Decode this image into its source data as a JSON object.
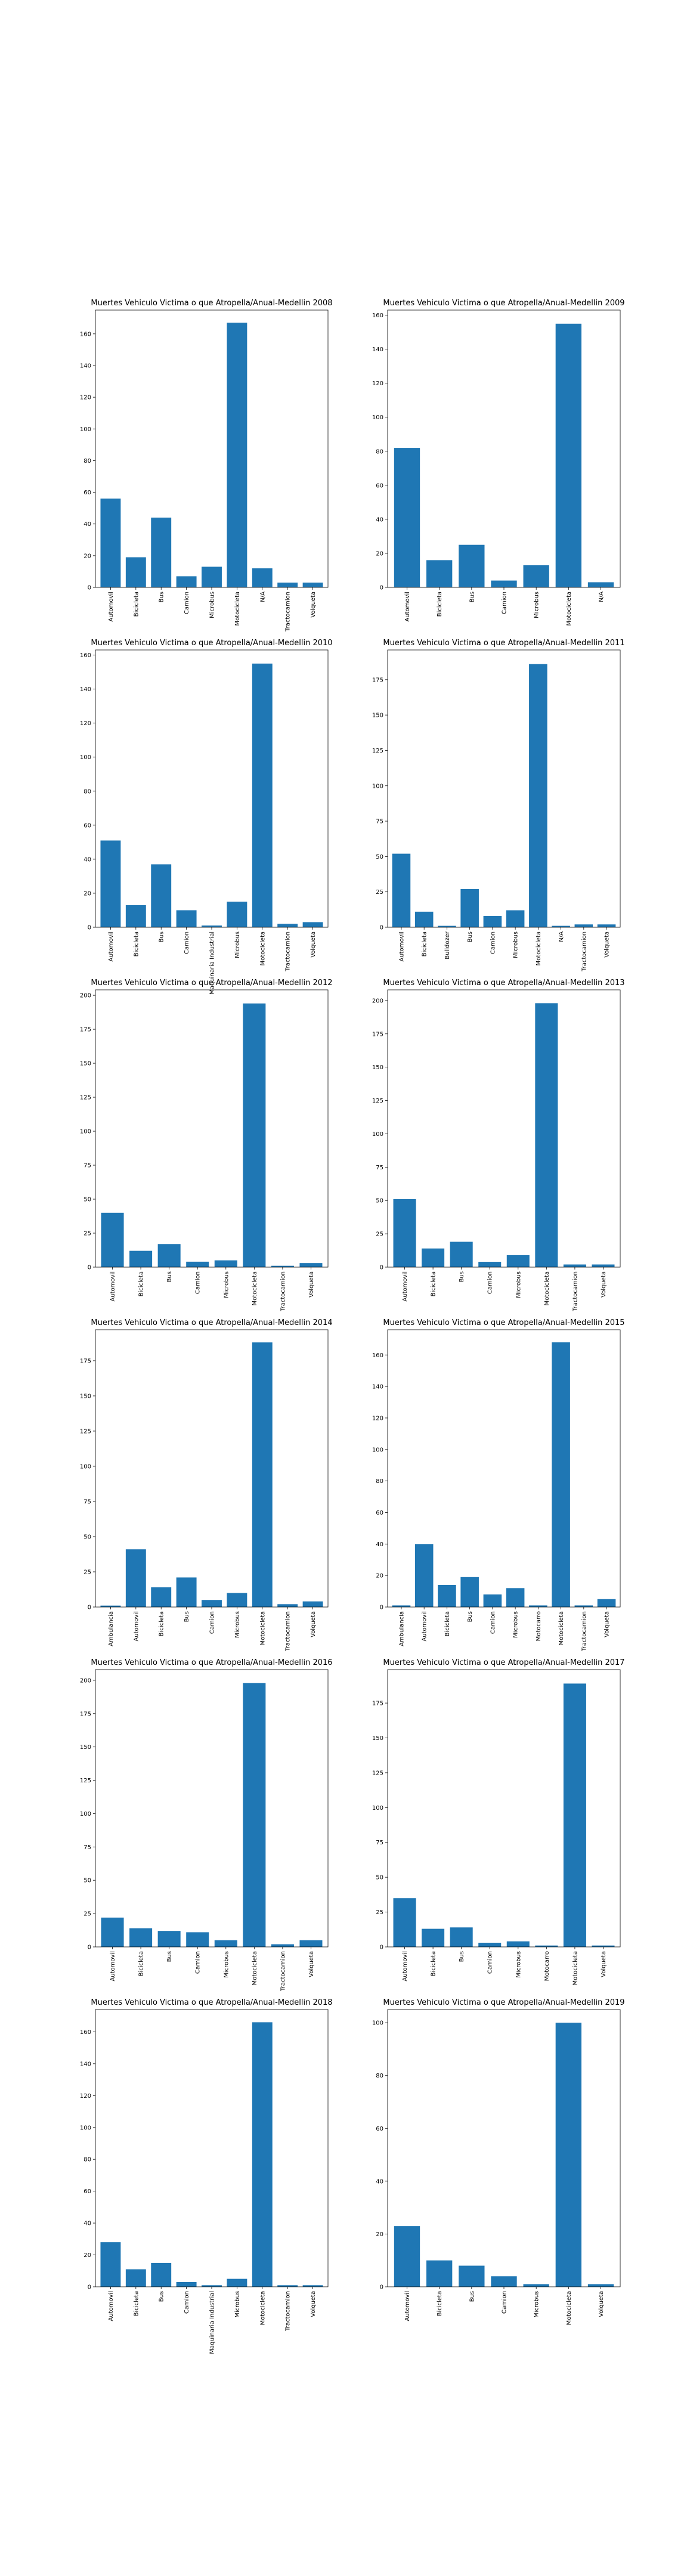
{
  "colors": {
    "bar": "#1f77b4",
    "axis": "#000000",
    "background": "#ffffff"
  },
  "chart_data": [
    {
      "type": "bar",
      "title": "Muertes Vehiculo Victima o que Atropella/Anual-Medellin 2008",
      "categories": [
        "Automovil",
        "Bicicleta",
        "Bus",
        "Camion",
        "Microbus",
        "Motocicleta",
        "N/A",
        "Tractocamion",
        "Volqueta"
      ],
      "values": [
        56,
        19,
        44,
        7,
        13,
        167,
        12,
        3,
        3
      ],
      "xlabel": "",
      "ylabel": "",
      "ylim": [
        0,
        175
      ],
      "yticks": [
        0,
        20,
        40,
        60,
        80,
        100,
        120,
        140,
        160
      ],
      "grid": false
    },
    {
      "type": "bar",
      "title": "Muertes Vehiculo Victima o que Atropella/Anual-Medellin 2009",
      "categories": [
        "Automovil",
        "Bicicleta",
        "Bus",
        "Camion",
        "Microbus",
        "Motocicleta",
        "N/A"
      ],
      "values": [
        82,
        16,
        25,
        4,
        13,
        155,
        3
      ],
      "xlabel": "",
      "ylabel": "",
      "ylim": [
        0,
        163
      ],
      "yticks": [
        0,
        20,
        40,
        60,
        80,
        100,
        120,
        140,
        160
      ],
      "grid": false
    },
    {
      "type": "bar",
      "title": "Muertes Vehiculo Victima o que Atropella/Anual-Medellin 2010",
      "categories": [
        "Automovil",
        "Bicicleta",
        "Bus",
        "Camion",
        "Maquinaria Industrial",
        "Microbus",
        "Motocicleta",
        "Tractocamion",
        "Volqueta"
      ],
      "values": [
        51,
        13,
        37,
        10,
        1,
        15,
        155,
        2,
        3
      ],
      "xlabel": "",
      "ylabel": "",
      "ylim": [
        0,
        163
      ],
      "yticks": [
        0,
        20,
        40,
        60,
        80,
        100,
        120,
        140,
        160
      ],
      "grid": false
    },
    {
      "type": "bar",
      "title": "Muertes Vehiculo Victima o que Atropella/Anual-Medellin 2011",
      "categories": [
        "Automovil",
        "Bicicleta",
        "Bulldozer",
        "Bus",
        "Camion",
        "Microbus",
        "Motocicleta",
        "N/A",
        "Tractocamion",
        "Volqueta"
      ],
      "values": [
        52,
        11,
        1,
        27,
        8,
        12,
        186,
        1,
        2,
        2
      ],
      "xlabel": "",
      "ylabel": "",
      "ylim": [
        0,
        196
      ],
      "yticks": [
        0,
        25,
        50,
        75,
        100,
        125,
        150,
        175
      ],
      "grid": false
    },
    {
      "type": "bar",
      "title": "Muertes Vehiculo Victima o que Atropella/Anual-Medellin 2012",
      "categories": [
        "Automovil",
        "Bicicleta",
        "Bus",
        "Camion",
        "Microbus",
        "Motocicleta",
        "Tractocamion",
        "Volqueta"
      ],
      "values": [
        40,
        12,
        17,
        4,
        5,
        194,
        1,
        3
      ],
      "xlabel": "",
      "ylabel": "",
      "ylim": [
        0,
        204
      ],
      "yticks": [
        0,
        25,
        50,
        75,
        100,
        125,
        150,
        175,
        200
      ],
      "grid": false
    },
    {
      "type": "bar",
      "title": "Muertes Vehiculo Victima o que Atropella/Anual-Medellin 2013",
      "categories": [
        "Automovil",
        "Bicicleta",
        "Bus",
        "Camion",
        "Microbus",
        "Motocicleta",
        "Tractocamion",
        "Volqueta"
      ],
      "values": [
        51,
        14,
        19,
        4,
        9,
        198,
        2,
        2
      ],
      "xlabel": "",
      "ylabel": "",
      "ylim": [
        0,
        208
      ],
      "yticks": [
        0,
        25,
        50,
        75,
        100,
        125,
        150,
        175,
        200
      ],
      "grid": false
    },
    {
      "type": "bar",
      "title": "Muertes Vehiculo Victima o que Atropella/Anual-Medellin 2014",
      "categories": [
        "Ambulancia",
        "Automovil",
        "Bicicleta",
        "Bus",
        "Camion",
        "Microbus",
        "Motocicleta",
        "Tractocamion",
        "Volqueta"
      ],
      "values": [
        1,
        41,
        14,
        21,
        5,
        10,
        188,
        2,
        4
      ],
      "xlabel": "",
      "ylabel": "",
      "ylim": [
        0,
        197
      ],
      "yticks": [
        0,
        25,
        50,
        75,
        100,
        125,
        150,
        175
      ],
      "grid": false
    },
    {
      "type": "bar",
      "title": "Muertes Vehiculo Victima o que Atropella/Anual-Medellin 2015",
      "categories": [
        "Ambulancia",
        "Automovil",
        "Bicicleta",
        "Bus",
        "Camion",
        "Microbus",
        "Motocarro",
        "Motocicleta",
        "Tractocamion",
        "Volqueta"
      ],
      "values": [
        1,
        40,
        14,
        19,
        8,
        12,
        1,
        168,
        1,
        5
      ],
      "xlabel": "",
      "ylabel": "",
      "ylim": [
        0,
        176
      ],
      "yticks": [
        0,
        20,
        40,
        60,
        80,
        100,
        120,
        140,
        160
      ],
      "grid": false
    },
    {
      "type": "bar",
      "title": "Muertes Vehiculo Victima o que Atropella/Anual-Medellin 2016",
      "categories": [
        "Automovil",
        "Bicicleta",
        "Bus",
        "Camion",
        "Microbus",
        "Motocicleta",
        "Tractocamion",
        "Volqueta"
      ],
      "values": [
        22,
        14,
        12,
        11,
        5,
        198,
        2,
        5
      ],
      "xlabel": "",
      "ylabel": "",
      "ylim": [
        0,
        208
      ],
      "yticks": [
        0,
        25,
        50,
        75,
        100,
        125,
        150,
        175,
        200
      ],
      "grid": false
    },
    {
      "type": "bar",
      "title": "Muertes Vehiculo Victima o que Atropella/Anual-Medellin 2017",
      "categories": [
        "Automovil",
        "Bicicleta",
        "Bus",
        "Camion",
        "Microbus",
        "Motocarro",
        "Motocicleta",
        "Volqueta"
      ],
      "values": [
        35,
        13,
        14,
        3,
        4,
        1,
        189,
        1
      ],
      "xlabel": "",
      "ylabel": "",
      "ylim": [
        0,
        199
      ],
      "yticks": [
        0,
        25,
        50,
        75,
        100,
        125,
        150,
        175
      ],
      "grid": false
    },
    {
      "type": "bar",
      "title": "Muertes Vehiculo Victima o que Atropella/Anual-Medellin 2018",
      "categories": [
        "Automovil",
        "Bicicleta",
        "Bus",
        "Camion",
        "Maquinaria Industrial",
        "Microbus",
        "Motocicleta",
        "Tractocamion",
        "Volqueta"
      ],
      "values": [
        28,
        11,
        15,
        3,
        1,
        5,
        166,
        1,
        1
      ],
      "xlabel": "",
      "ylabel": "",
      "ylim": [
        0,
        174
      ],
      "yticks": [
        0,
        20,
        40,
        60,
        80,
        100,
        120,
        140,
        160
      ],
      "grid": false
    },
    {
      "type": "bar",
      "title": "Muertes Vehiculo Victima o que Atropella/Anual-Medellin 2019",
      "categories": [
        "Automovil",
        "Bicicleta",
        "Bus",
        "Camion",
        "Microbus",
        "Motocicleta",
        "Volqueta"
      ],
      "values": [
        23,
        10,
        8,
        4,
        1,
        100,
        1
      ],
      "xlabel": "",
      "ylabel": "",
      "ylim": [
        0,
        105
      ],
      "yticks": [
        0,
        20,
        40,
        60,
        80,
        100
      ],
      "grid": false
    }
  ]
}
